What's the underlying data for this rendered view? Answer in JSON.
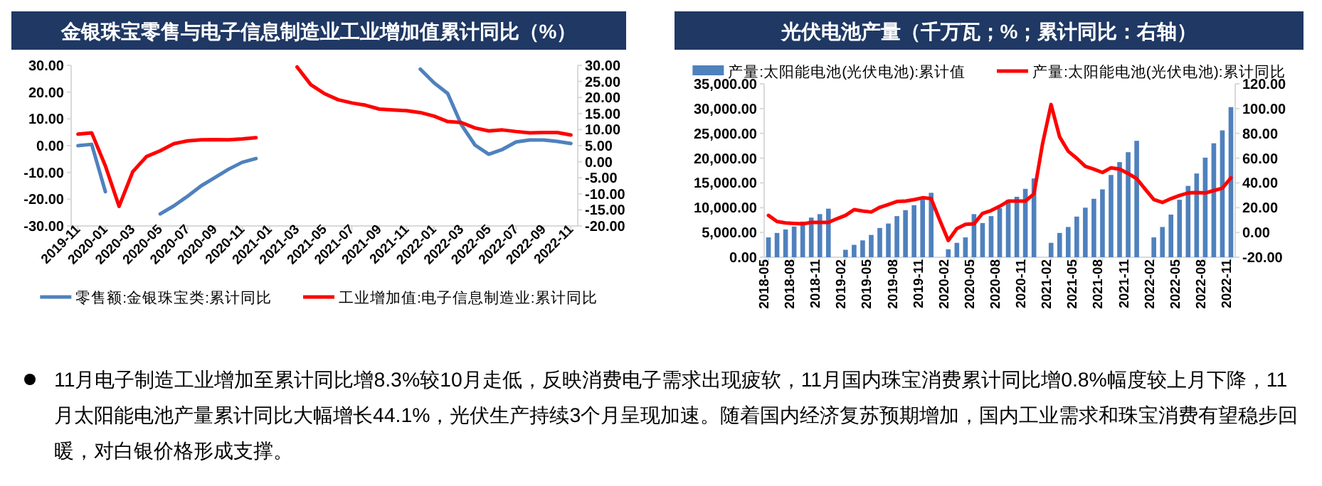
{
  "chart_data": [
    {
      "type": "line",
      "title": "金银珠宝零售与电子信息制造业工业增加值累计同比（%）",
      "categories": [
        "2019-11",
        null,
        "2020-01",
        null,
        "2020-03",
        null,
        "2020-05",
        null,
        "2020-07",
        null,
        "2020-09",
        null,
        "2020-11",
        null,
        "2021-01",
        null,
        "2021-03",
        null,
        "2021-05",
        null,
        "2021-07",
        null,
        "2021-09",
        null,
        "2021-11",
        null,
        "2022-01",
        null,
        "2022-03",
        null,
        "2022-05",
        null,
        "2022-07",
        null,
        "2022-09",
        null,
        "2022-11"
      ],
      "series": [
        {
          "name": "零售额:金银珠宝类:累计同比",
          "color": "#4f81bd",
          "values": [
            0.0,
            0.5,
            -17.2,
            null,
            null,
            null,
            -25.5,
            -22.5,
            -18.9,
            -15.0,
            -11.9,
            -8.8,
            -6.2,
            -4.8,
            null,
            null,
            null,
            null,
            null,
            null,
            null,
            null,
            null,
            null,
            null,
            28.6,
            23.5,
            19.5,
            7.8,
            0.2,
            -3.2,
            -1.4,
            1.4,
            2.1,
            2.1,
            1.6,
            0.8
          ]
        },
        {
          "name": "工业增加值:电子信息制造业:累计同比",
          "color": "#ff0000",
          "axis": "y2",
          "values": [
            8.6,
            9.0,
            -1.3,
            -13.9,
            -3.1,
            1.6,
            3.4,
            5.6,
            6.5,
            6.8,
            6.9,
            6.8,
            7.1,
            7.5,
            null,
            null,
            29.5,
            24.0,
            21.2,
            19.3,
            18.3,
            17.6,
            16.4,
            16.1,
            15.9,
            15.3,
            14.2,
            12.5,
            12.2,
            10.5,
            9.6,
            9.9,
            9.4,
            9.0,
            9.1,
            9.1,
            8.3
          ]
        }
      ],
      "ylim": [
        -30,
        30
      ],
      "yticks": [
        {
          "value": -30,
          "label": "-30.00"
        },
        {
          "value": -20,
          "label": "-20.00"
        },
        {
          "value": -10,
          "label": "-10.00"
        },
        {
          "value": 0,
          "label": "0.00"
        },
        {
          "value": 10,
          "label": "10.00"
        },
        {
          "value": 20,
          "label": "20.00"
        },
        {
          "value": 30,
          "label": "30.00"
        }
      ],
      "y2lim": [
        -20,
        30
      ],
      "y2ticks": [
        {
          "value": -20,
          "label": "-20.00"
        },
        {
          "value": -15,
          "label": "-15.00"
        },
        {
          "value": -10,
          "label": "-10.00"
        },
        {
          "value": -5,
          "label": "-5.00"
        },
        {
          "value": 0,
          "label": "0.00"
        },
        {
          "value": 5,
          "label": "5.00"
        },
        {
          "value": 10,
          "label": "10.00"
        },
        {
          "value": 15,
          "label": "15.00"
        },
        {
          "value": 20,
          "label": "20.00"
        },
        {
          "value": 25,
          "label": "25.00"
        },
        {
          "value": 30,
          "label": "30.00"
        }
      ],
      "legend": "bottom"
    },
    {
      "type": "bar",
      "title": "光伏电池产量（千万瓦；%；累计同比：右轴）",
      "categories": [
        "2018-05",
        null,
        null,
        "2018-08",
        null,
        null,
        "2018-11",
        null,
        null,
        "2019-02",
        null,
        null,
        "2019-05",
        null,
        null,
        "2019-08",
        null,
        null,
        "2019-11",
        null,
        null,
        "2020-02",
        null,
        null,
        "2020-05",
        null,
        null,
        "2020-08",
        null,
        null,
        "2020-11",
        null,
        null,
        "2021-02",
        null,
        null,
        "2021-05",
        null,
        null,
        "2021-08",
        null,
        null,
        "2021-11",
        null,
        null,
        "2022-02",
        null,
        null,
        "2022-05",
        null,
        null,
        "2022-08",
        null,
        null,
        "2022-11"
      ],
      "series": [
        {
          "name": "产量:太阳能电池(光伏电池):累计值",
          "color": "#4f81bd",
          "values": [
            4000,
            4900,
            5600,
            6200,
            7200,
            8000,
            8700,
            9800,
            null,
            1500,
            2500,
            3400,
            4500,
            5900,
            6800,
            8300,
            9500,
            10500,
            11600,
            13000,
            null,
            1600,
            2900,
            4000,
            8700,
            6900,
            8300,
            9900,
            11600,
            12200,
            13800,
            15900,
            null,
            2900,
            4900,
            6100,
            8200,
            10000,
            11800,
            13700,
            16600,
            19200,
            21200,
            23500,
            null,
            4000,
            6100,
            8600,
            11600,
            14400,
            16900,
            20100,
            23000,
            25600,
            30300
          ]
        },
        {
          "name": "产量:太阳能电池(光伏电池):累计同比",
          "color": "#ff0000",
          "type": "line",
          "axis": "y2",
          "values": [
            13.8,
            8.8,
            7.7,
            7.3,
            6.9,
            8.1,
            8.1,
            8.1,
            11.1,
            13.8,
            18.4,
            17.3,
            16.5,
            20.3,
            22.6,
            25.0,
            25.3,
            26.5,
            28.0,
            27.3,
            10.0,
            -6.5,
            3.1,
            6.5,
            6.9,
            15.4,
            17.7,
            21.1,
            25.3,
            25.3,
            25.3,
            31.1,
            71.4,
            103.3,
            77.2,
            65.6,
            59.9,
            53.4,
            51.1,
            48.4,
            52.2,
            51.1,
            47.6,
            43.4,
            34.9,
            26.5,
            24.2,
            27.3,
            29.9,
            31.9,
            32.2,
            31.9,
            33.8,
            35.7,
            44.1
          ]
        }
      ],
      "ylim": [
        0,
        35000
      ],
      "yticks": [
        {
          "value": 0,
          "label": "0.00"
        },
        {
          "value": 5000,
          "label": "5,000.00"
        },
        {
          "value": 10000,
          "label": "10,000.00"
        },
        {
          "value": 15000,
          "label": "15,000.00"
        },
        {
          "value": 20000,
          "label": "20,000.00"
        },
        {
          "value": 25000,
          "label": "25,000.00"
        },
        {
          "value": 30000,
          "label": "30,000.00"
        },
        {
          "value": 35000,
          "label": "35,000.00"
        }
      ],
      "y2lim": [
        -20,
        120
      ],
      "y2ticks": [
        {
          "value": -20,
          "label": "-20.00"
        },
        {
          "value": 0,
          "label": "0.00"
        },
        {
          "value": 20,
          "label": "20.00"
        },
        {
          "value": 40,
          "label": "40.00"
        },
        {
          "value": 60,
          "label": "60.00"
        },
        {
          "value": 80,
          "label": "80.00"
        },
        {
          "value": 100,
          "label": "100.00"
        },
        {
          "value": 120,
          "label": "120.00"
        }
      ],
      "legend": "top"
    },
    {
      "type": "other",
      "annotations": [
        "11月电子制造工业增加至累计同比增8.3%较10月走低，反映消费电子需求出现疲软，11月国内珠宝消费累计同比增0.8%幅度较上月下降，11月太阳能电池产量累计同比大幅增长44.1%，光伏生产持续3个月呈现加速。随着国内经济复苏预期增加，国内工业需求和珠宝消费有望稳步回暖，对白银价格形成支撑。"
      ]
    }
  ]
}
